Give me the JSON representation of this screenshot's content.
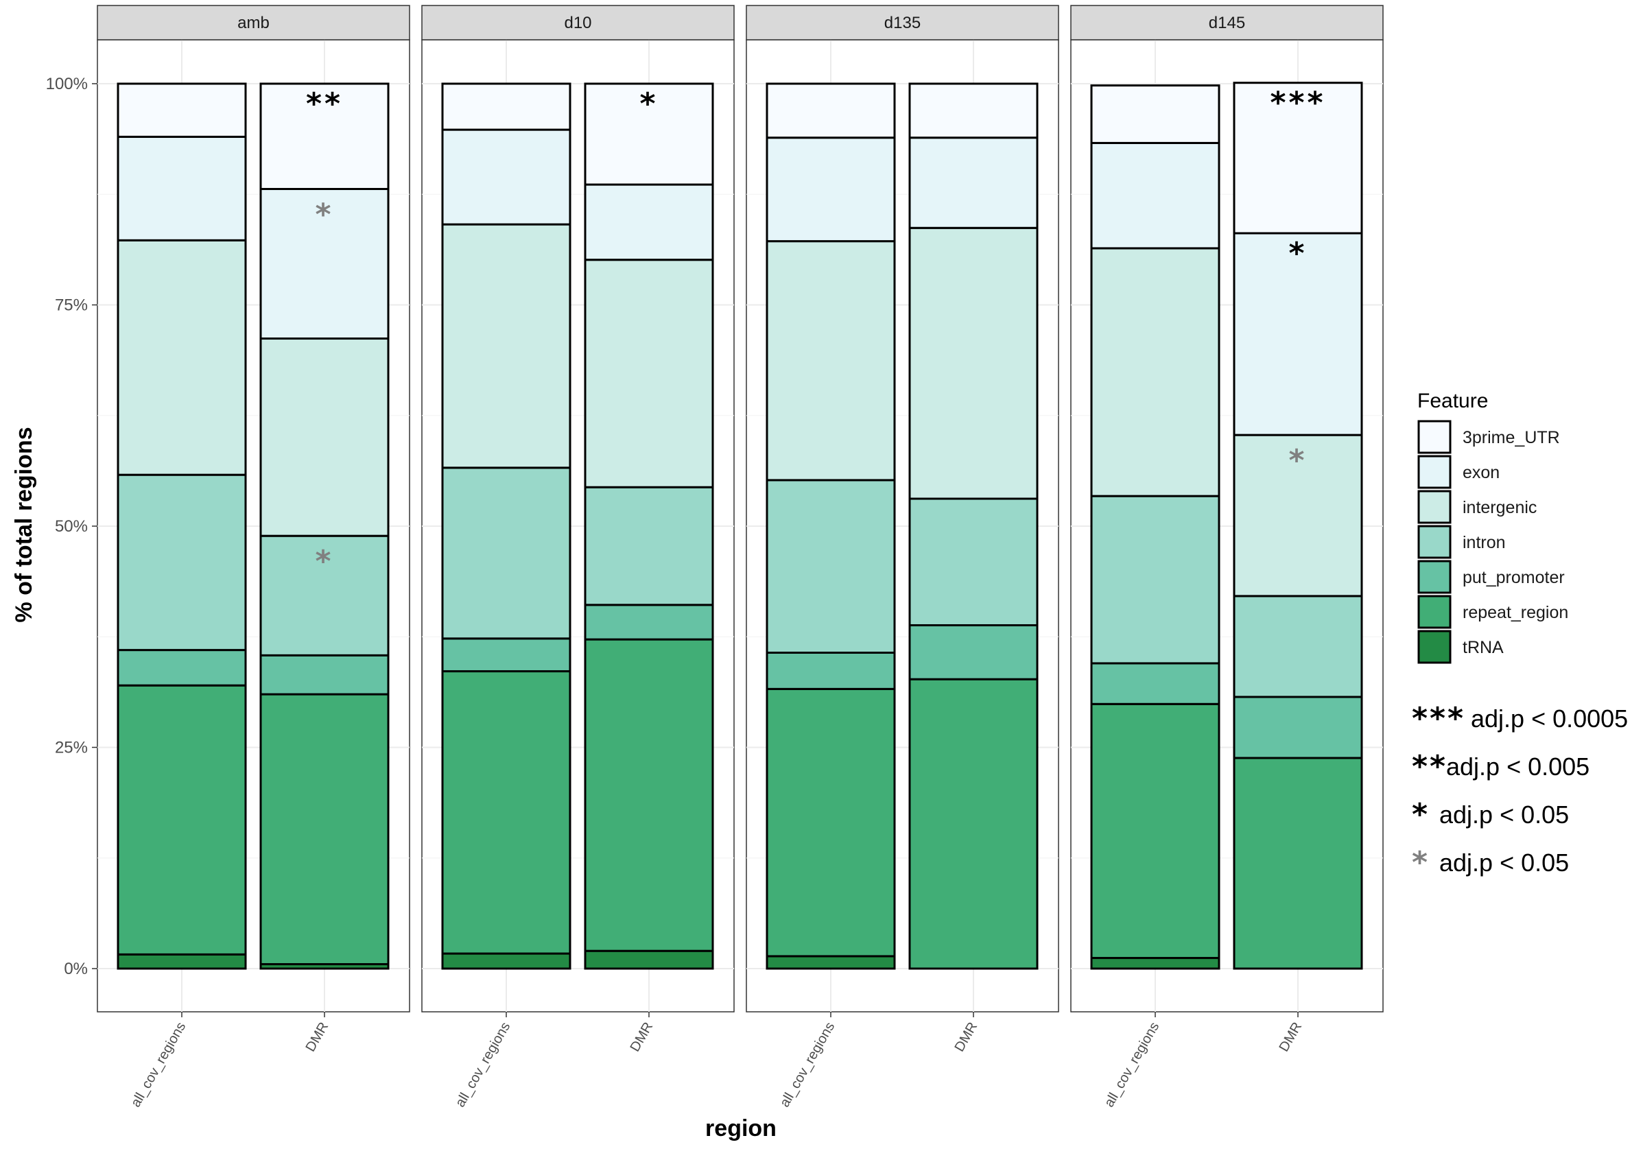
{
  "chart_data": {
    "type": "bar",
    "stacked": true,
    "ylabel": "% of total regions",
    "xlabel": "region",
    "ylim": [
      0,
      100
    ],
    "y_tick_labels": [
      "0%",
      "25%",
      "50%",
      "75%",
      "100%"
    ],
    "y_ticks": [
      0,
      25,
      50,
      75,
      100
    ],
    "grid": true,
    "legend_title": "Feature",
    "legend_position": "right",
    "features": [
      "3prime_UTR",
      "exon",
      "intergenic",
      "intron",
      "put_promoter",
      "repeat_region",
      "tRNA"
    ],
    "colors": [
      "#f7fbff",
      "#e5f5f9",
      "#ccece6",
      "#99d8c9",
      "#66c2a4",
      "#41ae76",
      "#238b45"
    ],
    "categories": [
      "all_cov_regions",
      "DMR"
    ],
    "panels": [
      {
        "name": "amb",
        "bars": [
          {
            "category": "all_cov_regions",
            "values": [
              6.0,
              11.7,
              26.5,
              19.8,
              4.0,
              30.4,
              1.6
            ],
            "stars": []
          },
          {
            "category": "DMR",
            "values": [
              11.9,
              16.9,
              22.3,
              13.5,
              4.4,
              30.5,
              0.5
            ],
            "stars": [
              {
                "feature": "3prime_UTR",
                "label": "**",
                "color": "black"
              },
              {
                "feature": "exon",
                "label": "*",
                "color": "grey"
              },
              {
                "feature": "intron",
                "label": "*",
                "color": "grey"
              }
            ]
          }
        ]
      },
      {
        "name": "d10",
        "bars": [
          {
            "category": "all_cov_regions",
            "values": [
              5.2,
              10.7,
              27.5,
              19.3,
              3.7,
              31.9,
              1.7
            ],
            "stars": []
          },
          {
            "category": "DMR",
            "values": [
              11.4,
              8.5,
              25.7,
              13.3,
              3.9,
              35.2,
              2.0
            ],
            "stars": [
              {
                "feature": "3prime_UTR",
                "label": "*",
                "color": "black"
              }
            ]
          }
        ]
      },
      {
        "name": "d135",
        "bars": [
          {
            "category": "all_cov_regions",
            "values": [
              6.1,
              11.7,
              27.0,
              19.5,
              4.1,
              30.2,
              1.4
            ],
            "stars": []
          },
          {
            "category": "DMR",
            "values": [
              6.1,
              10.2,
              30.6,
              14.3,
              6.1,
              32.7,
              0.0
            ],
            "stars": []
          }
        ]
      },
      {
        "name": "d145",
        "bars": [
          {
            "category": "all_cov_regions",
            "values": [
              6.5,
              11.9,
              28.0,
              18.9,
              4.6,
              28.7,
              1.2
            ],
            "stars": []
          },
          {
            "category": "DMR",
            "values": [
              17.0,
              22.8,
              18.2,
              11.4,
              6.9,
              23.8,
              0.0
            ],
            "stars": [
              {
                "feature": "3prime_UTR",
                "label": "***",
                "color": "black"
              },
              {
                "feature": "exon",
                "label": "*",
                "color": "black"
              },
              {
                "feature": "intergenic",
                "label": "*",
                "color": "grey"
              }
            ]
          }
        ]
      }
    ],
    "significance_legend": [
      {
        "stars": "***",
        "text": "adj.p < 0.0005",
        "color": "#000000"
      },
      {
        "stars": "**",
        "text": "adj.p < 0.005",
        "color": "#000000"
      },
      {
        "stars": "*",
        "text": "adj.p < 0.05",
        "color": "#000000"
      },
      {
        "stars": "*",
        "text": "adj.p < 0.05",
        "color": "#808080"
      }
    ]
  }
}
